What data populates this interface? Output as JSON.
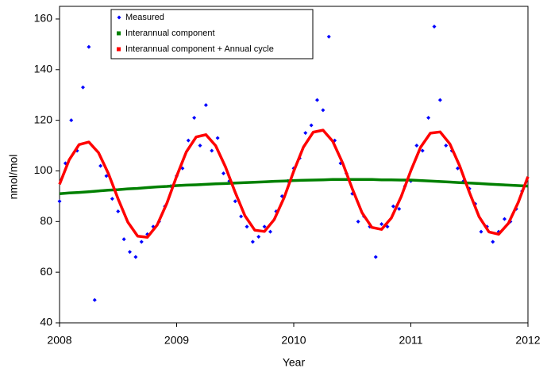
{
  "chart_data": {
    "type": "scatter",
    "xlabel": "Year",
    "ylabel": "nmol/mol",
    "xlim": [
      2008,
      2012
    ],
    "xticks": [
      2008,
      2009,
      2010,
      2011,
      2012
    ],
    "ylim": [
      40,
      165
    ],
    "yticks": [
      40,
      60,
      80,
      100,
      120,
      140,
      160
    ],
    "series": [
      {
        "name": "Measured",
        "color": "#0000ff",
        "mode": "markers",
        "x": [
          2008.0,
          2008.05,
          2008.1,
          2008.15,
          2008.2,
          2008.25,
          2008.3,
          2008.35,
          2008.4,
          2008.45,
          2008.5,
          2008.55,
          2008.6,
          2008.65,
          2008.7,
          2008.75,
          2008.8,
          2008.85,
          2008.9,
          2008.95,
          2009.0,
          2009.05,
          2009.1,
          2009.15,
          2009.2,
          2009.25,
          2009.3,
          2009.35,
          2009.4,
          2009.45,
          2009.5,
          2009.55,
          2009.6,
          2009.65,
          2009.7,
          2009.75,
          2009.8,
          2009.85,
          2009.9,
          2009.95,
          2010.0,
          2010.05,
          2010.1,
          2010.15,
          2010.2,
          2010.25,
          2010.3,
          2010.35,
          2010.4,
          2010.45,
          2010.5,
          2010.55,
          2010.6,
          2010.65,
          2010.7,
          2010.75,
          2010.8,
          2010.85,
          2010.9,
          2010.95,
          2011.0,
          2011.05,
          2011.1,
          2011.15,
          2011.2,
          2011.25,
          2011.3,
          2011.35,
          2011.4,
          2011.45,
          2011.5,
          2011.55,
          2011.6,
          2011.65,
          2011.7,
          2011.75,
          2011.8,
          2011.85,
          2011.9,
          2011.95
        ],
        "values": [
          88,
          103,
          120,
          108,
          133,
          149,
          49,
          102,
          98,
          89,
          84,
          73,
          68,
          66,
          72,
          75,
          78,
          80,
          86,
          94,
          98,
          101,
          112,
          121,
          110,
          126,
          108,
          113,
          99,
          96,
          88,
          82,
          78,
          72,
          74,
          78,
          76,
          84,
          90,
          96,
          101,
          105,
          115,
          118,
          128,
          124,
          153,
          112,
          103,
          99,
          91,
          80,
          82,
          78,
          66,
          79,
          78,
          86,
          85,
          94,
          96,
          110,
          108,
          121,
          157,
          128,
          110,
          108,
          101,
          96,
          93,
          87,
          76,
          78,
          72,
          76,
          81,
          80,
          85,
          92
        ]
      },
      {
        "name": "Interannual component",
        "color": "#008000",
        "mode": "line",
        "x": [
          2008,
          2008.083,
          2008.167,
          2008.25,
          2008.333,
          2008.417,
          2008.5,
          2008.583,
          2008.667,
          2008.75,
          2008.833,
          2008.917,
          2009,
          2009.083,
          2009.167,
          2009.25,
          2009.333,
          2009.417,
          2009.5,
          2009.583,
          2009.667,
          2009.75,
          2009.833,
          2009.917,
          2010,
          2010.083,
          2010.167,
          2010.25,
          2010.333,
          2010.417,
          2010.5,
          2010.583,
          2010.667,
          2010.75,
          2010.833,
          2010.917,
          2011,
          2011.083,
          2011.167,
          2011.25,
          2011.333,
          2011.417,
          2011.5,
          2011.583,
          2011.667,
          2011.75,
          2011.833,
          2011.917,
          2012
        ],
        "values": [
          91,
          91.3,
          91.5,
          91.8,
          92.1,
          92.4,
          92.6,
          92.9,
          93.1,
          93.4,
          93.7,
          93.9,
          94.2,
          94.4,
          94.5,
          94.7,
          94.9,
          95.0,
          95.2,
          95.4,
          95.5,
          95.7,
          95.9,
          96.0,
          96.2,
          96.3,
          96.4,
          96.5,
          96.6,
          96.6,
          96.6,
          96.6,
          96.6,
          96.5,
          96.5,
          96.4,
          96.4,
          96.2,
          96.0,
          95.8,
          95.6,
          95.4,
          95.2,
          95.0,
          94.8,
          94.6,
          94.4,
          94.2,
          94.0
        ]
      },
      {
        "name": "Interannual component + Annual cycle",
        "color": "#ff0000",
        "mode": "line",
        "x": [
          2008,
          2008.083,
          2008.167,
          2008.25,
          2008.333,
          2008.417,
          2008.5,
          2008.583,
          2008.667,
          2008.75,
          2008.833,
          2008.917,
          2009,
          2009.083,
          2009.167,
          2009.25,
          2009.333,
          2009.417,
          2009.5,
          2009.583,
          2009.667,
          2009.75,
          2009.833,
          2009.917,
          2010,
          2010.083,
          2010.167,
          2010.25,
          2010.333,
          2010.417,
          2010.5,
          2010.583,
          2010.667,
          2010.75,
          2010.833,
          2010.917,
          2011,
          2011.083,
          2011.167,
          2011.25,
          2011.333,
          2011.417,
          2011.5,
          2011.583,
          2011.667,
          2011.75,
          2011.833,
          2011.917,
          2012
        ],
        "values": [
          94.7,
          104.4,
          110.4,
          111.4,
          107.2,
          99.0,
          88.9,
          79.8,
          74.2,
          73.8,
          78.6,
          87.3,
          97.9,
          107.5,
          113.4,
          114.3,
          110.0,
          101.6,
          91.5,
          82.3,
          76.6,
          76.1,
          80.8,
          89.4,
          99.9,
          109.4,
          115.3,
          116.1,
          111.7,
          103.2,
          92.9,
          83.5,
          77.7,
          76.9,
          81.4,
          89.8,
          100.1,
          109.3,
          114.9,
          115.4,
          110.7,
          102.0,
          91.5,
          81.9,
          75.9,
          75.0,
          79.3,
          87.6,
          97.7
        ]
      }
    ]
  }
}
